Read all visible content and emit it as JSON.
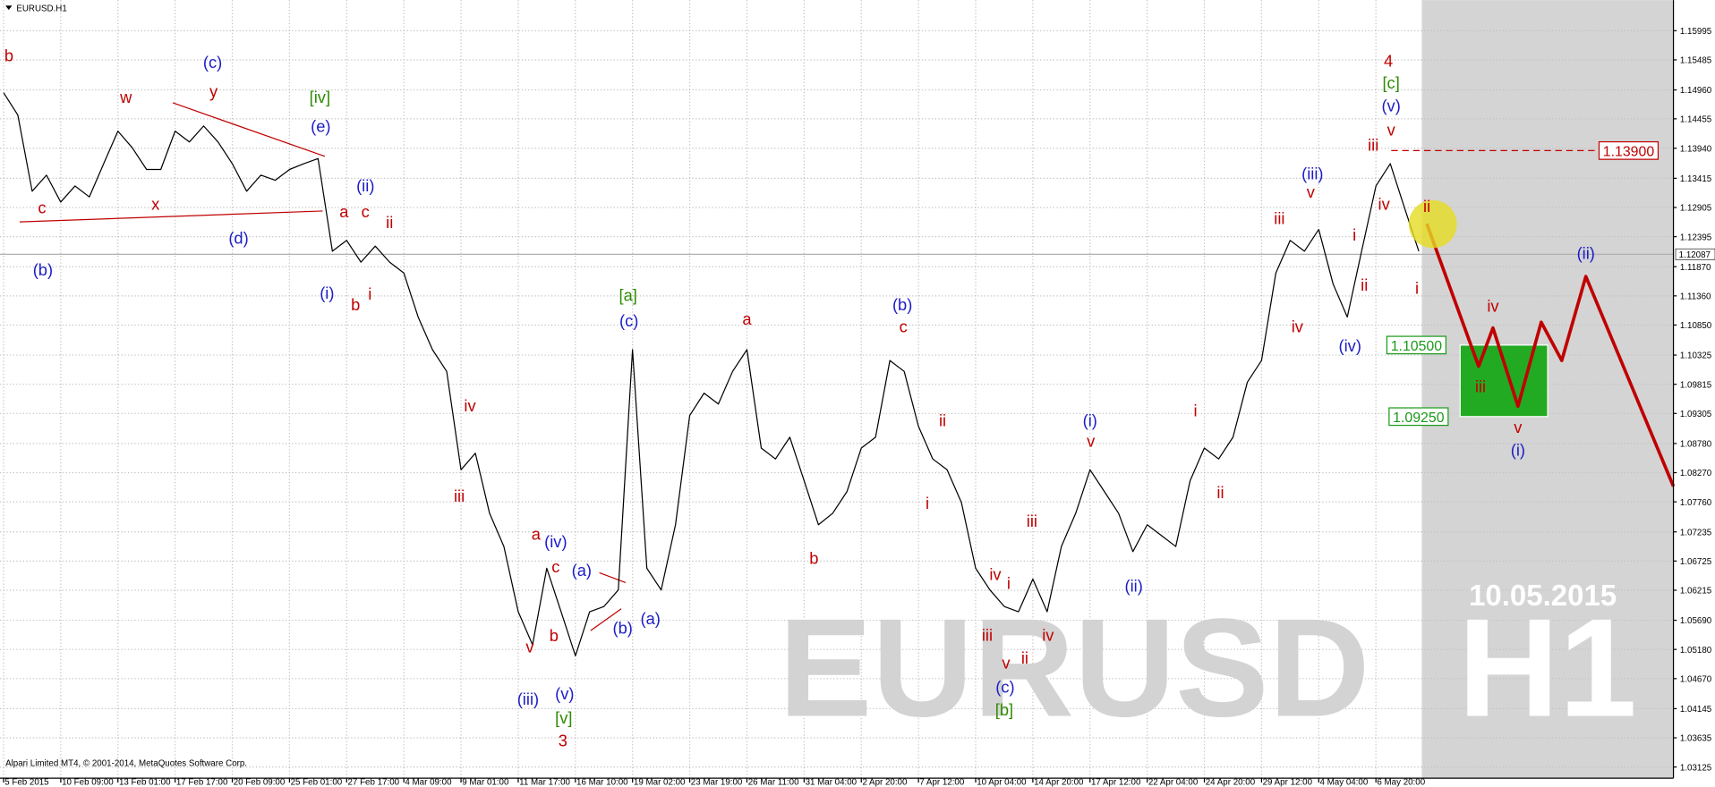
{
  "chart_data": {
    "type": "line",
    "title": "EURUSD.H1",
    "copyright": "Alpari Limited MT4, © 2001-2014, MetaQuotes Software Corp.",
    "watermark": {
      "symbol": "EURUSD",
      "timeframe": "H1",
      "date": "10.05.2015"
    },
    "xlim": [
      -4,
      1869
    ],
    "ylim": [
      1.0293,
      1.1653
    ],
    "grid": true,
    "xticks": [
      {
        "value": 0,
        "label": "5 Feb 2015"
      },
      {
        "value": 64,
        "label": "10 Feb 09:00"
      },
      {
        "value": 128,
        "label": "13 Feb 01:00"
      },
      {
        "value": 192,
        "label": "17 Feb 17:00"
      },
      {
        "value": 256,
        "label": "20 Feb 09:00"
      },
      {
        "value": 320,
        "label": "25 Feb 01:00"
      },
      {
        "value": 384,
        "label": "27 Feb 17:00"
      },
      {
        "value": 448,
        "label": "4 Mar 09:00"
      },
      {
        "value": 512,
        "label": "9 Mar 01:00"
      },
      {
        "value": 576,
        "label": "11 Mar 17:00"
      },
      {
        "value": 640,
        "label": "16 Mar 10:00"
      },
      {
        "value": 704,
        "label": "19 Mar 02:00"
      },
      {
        "value": 768,
        "label": "23 Mar 19:00"
      },
      {
        "value": 832,
        "label": "26 Mar 11:00"
      },
      {
        "value": 896,
        "label": "31 Mar 04:00"
      },
      {
        "value": 960,
        "label": "2 Apr 20:00"
      },
      {
        "value": 1024,
        "label": "7 Apr 12:00"
      },
      {
        "value": 1088,
        "label": "10 Apr 04:00"
      },
      {
        "value": 1152,
        "label": "14 Apr 20:00"
      },
      {
        "value": 1216,
        "label": "17 Apr 12:00"
      },
      {
        "value": 1280,
        "label": "22 Apr 04:00"
      },
      {
        "value": 1344,
        "label": "24 Apr 20:00"
      },
      {
        "value": 1408,
        "label": "29 Apr 12:00"
      },
      {
        "value": 1472,
        "label": "4 May 04:00"
      },
      {
        "value": 1536,
        "label": "6 May 20:00"
      }
    ],
    "yticks": [
      1.15995,
      1.15485,
      {
        "value": 1.1496,
        "label": "1.14960"
      },
      1.14455,
      {
        "value": 1.1394,
        "label": "1.13940"
      },
      1.13415,
      1.12905,
      1.12395,
      {
        "value": 1.1187,
        "label": "1.11870"
      },
      {
        "value": 1.1136,
        "label": "1.11360"
      },
      {
        "value": 1.1085,
        "label": "1.10850"
      },
      1.10325,
      1.09815,
      1.09305,
      {
        "value": 1.0878,
        "label": "1.08780"
      },
      {
        "value": 1.0827,
        "label": "1.08270"
      },
      {
        "value": 1.0776,
        "label": "1.07760"
      },
      1.07235,
      1.06725,
      1.06215,
      {
        "value": 1.0569,
        "label": "1.05690"
      },
      {
        "value": 1.0518,
        "label": "1.05180"
      },
      {
        "value": 1.0467,
        "label": "1.04670"
      },
      1.04145,
      1.03635,
      1.03125
    ],
    "current_price": 1.12087,
    "levels": [
      {
        "value": 1.139,
        "label": "1.13900",
        "color": "#c00000"
      },
      {
        "value": 1.105,
        "label": "1.10500",
        "color": "#1a9a1a"
      },
      {
        "value": 1.0925,
        "label": "1.09250",
        "color": "#1a9a1a"
      }
    ],
    "series": [
      {
        "color": "#000000",
        "x": [
          0,
          16,
          32,
          48,
          64,
          80,
          96,
          112,
          128,
          144,
          160,
          176,
          192,
          208,
          224,
          240,
          256,
          272,
          288,
          304,
          320,
          336,
          352,
          368,
          384,
          400,
          416,
          432,
          448,
          464,
          480,
          496,
          512,
          528,
          544,
          560,
          576,
          592,
          608,
          624,
          640,
          656,
          672,
          688,
          704,
          720,
          736,
          752,
          768,
          784,
          800,
          816,
          832,
          848,
          864,
          880,
          896,
          912,
          928,
          944,
          960,
          976,
          992,
          1008,
          1024,
          1040,
          1056,
          1072,
          1088,
          1104,
          1120,
          1136,
          1152,
          1168,
          1184,
          1200,
          1216,
          1232,
          1248,
          1264,
          1280,
          1296,
          1312,
          1328,
          1344,
          1360,
          1376,
          1392,
          1408,
          1424,
          1440,
          1456,
          1472,
          1488,
          1504,
          1520,
          1536,
          1552,
          1568,
          1584
        ],
        "values": [
          1.1491,
          1.1452,
          1.1319,
          1.1347,
          1.13,
          1.1328,
          1.1309,
          1.1367,
          1.1424,
          1.1395,
          1.1357,
          1.1357,
          1.1424,
          1.1405,
          1.1433,
          1.1405,
          1.1367,
          1.1319,
          1.1347,
          1.1338,
          1.1357,
          1.1367,
          1.1376,
          1.1214,
          1.1233,
          1.1195,
          1.1223,
          1.1195,
          1.1176,
          1.1099,
          1.1042,
          1.1004,
          1.0832,
          1.0861,
          1.0756,
          1.0698,
          1.0584,
          1.0526,
          1.066,
          1.0584,
          1.0507,
          1.0584,
          1.0593,
          1.0622,
          1.1042,
          1.066,
          1.0622,
          1.0736,
          1.0927,
          1.0966,
          1.0947,
          1.1004,
          1.1042,
          1.087,
          1.0851,
          1.0889,
          1.0813,
          1.0736,
          1.0756,
          1.0794,
          1.087,
          1.0889,
          1.1023,
          1.1004,
          1.0908,
          1.0851,
          1.0832,
          1.0775,
          1.066,
          1.0622,
          1.0593,
          1.0584,
          1.0641,
          1.0584,
          1.0698,
          1.0756,
          1.0832,
          1.0794,
          1.0756,
          1.0689,
          1.0736,
          1.0717,
          1.0698,
          1.0813,
          1.087,
          1.0851,
          1.0889,
          1.0985,
          1.1023,
          1.1176,
          1.1233,
          1.1214,
          1.1252,
          1.1157,
          1.1099,
          1.1214,
          1.1328,
          1.1367,
          1.129,
          1.1214
        ]
      },
      {
        "color": "#c00000",
        "x": [
          1593,
          1651,
          1667,
          1695,
          1721,
          1744,
          1771,
          1869
        ],
        "values": [
          1.1262,
          1.1013,
          1.108,
          1.0943,
          1.109,
          1.1023,
          1.117,
          1.0803
        ]
      }
    ],
    "annotations": [
      {
        "text": "b",
        "x": 6,
        "y": 1.1554,
        "color": "#c00000"
      },
      {
        "text": "w",
        "x": 137,
        "y": 1.1481,
        "color": "#c00000"
      },
      {
        "text": "y",
        "x": 235,
        "y": 1.1491,
        "color": "#c00000"
      },
      {
        "text": "x",
        "x": 170,
        "y": 1.1294,
        "color": "#c00000"
      },
      {
        "text": "c",
        "x": 43,
        "y": 1.1288,
        "color": "#c00000"
      },
      {
        "text": "a",
        "x": 381,
        "y": 1.1281,
        "color": "#c00000"
      },
      {
        "text": "c",
        "x": 405,
        "y": 1.1281,
        "color": "#c00000"
      },
      {
        "text": "ii",
        "x": 432,
        "y": 1.1262,
        "color": "#c00000"
      },
      {
        "text": "b",
        "x": 394,
        "y": 1.1118,
        "color": "#c00000"
      },
      {
        "text": "i",
        "x": 410,
        "y": 1.1137,
        "color": "#c00000"
      },
      {
        "text": "iv",
        "x": 522,
        "y": 1.0942,
        "color": "#c00000"
      },
      {
        "text": "iii",
        "x": 510,
        "y": 1.0784,
        "color": "#c00000"
      },
      {
        "text": "a",
        "x": 596,
        "y": 1.0717,
        "color": "#c00000"
      },
      {
        "text": "c",
        "x": 618,
        "y": 1.066,
        "color": "#c00000"
      },
      {
        "text": "b",
        "x": 616,
        "y": 1.054,
        "color": "#c00000"
      },
      {
        "text": "v",
        "x": 589,
        "y": 1.052,
        "color": "#c00000"
      },
      {
        "text": "3",
        "x": 626,
        "y": 1.0356,
        "color": "#c00000"
      },
      {
        "text": "a",
        "x": 832,
        "y": 1.1093,
        "color": "#c00000"
      },
      {
        "text": "c",
        "x": 1007,
        "y": 1.108,
        "color": "#c00000"
      },
      {
        "text": "b",
        "x": 907,
        "y": 1.0675,
        "color": "#c00000"
      },
      {
        "text": "ii",
        "x": 1051,
        "y": 1.0916,
        "color": "#c00000"
      },
      {
        "text": "i",
        "x": 1034,
        "y": 1.0771,
        "color": "#c00000"
      },
      {
        "text": "iv",
        "x": 1110,
        "y": 1.0647,
        "color": "#c00000"
      },
      {
        "text": "i",
        "x": 1125,
        "y": 1.0631,
        "color": "#c00000"
      },
      {
        "text": "iii",
        "x": 1101,
        "y": 1.0541,
        "color": "#c00000"
      },
      {
        "text": "v",
        "x": 1122,
        "y": 1.0492,
        "color": "#c00000"
      },
      {
        "text": "ii",
        "x": 1143,
        "y": 1.0501,
        "color": "#c00000"
      },
      {
        "text": "iii",
        "x": 1151,
        "y": 1.074,
        "color": "#c00000"
      },
      {
        "text": "iv",
        "x": 1169,
        "y": 1.0541,
        "color": "#c00000"
      },
      {
        "text": "v",
        "x": 1217,
        "y": 1.088,
        "color": "#c00000"
      },
      {
        "text": "i",
        "x": 1334,
        "y": 1.0933,
        "color": "#c00000"
      },
      {
        "text": "ii",
        "x": 1362,
        "y": 1.079,
        "color": "#c00000"
      },
      {
        "text": "iii",
        "x": 1428,
        "y": 1.1269,
        "color": "#c00000"
      },
      {
        "text": "v",
        "x": 1463,
        "y": 1.1315,
        "color": "#c00000"
      },
      {
        "text": "iv",
        "x": 1448,
        "y": 1.108,
        "color": "#c00000"
      },
      {
        "text": "i",
        "x": 1512,
        "y": 1.124,
        "color": "#c00000"
      },
      {
        "text": "ii",
        "x": 1523,
        "y": 1.1153,
        "color": "#c00000"
      },
      {
        "text": "iii",
        "x": 1533,
        "y": 1.1397,
        "color": "#c00000"
      },
      {
        "text": "v",
        "x": 1553,
        "y": 1.1424,
        "color": "#c00000"
      },
      {
        "text": "iv",
        "x": 1545,
        "y": 1.1294,
        "color": "#c00000"
      },
      {
        "text": "ii",
        "x": 1593,
        "y": 1.129,
        "color": "#c00000"
      },
      {
        "text": "i",
        "x": 1582,
        "y": 1.1147,
        "color": "#c00000"
      },
      {
        "text": "4",
        "x": 1550,
        "y": 1.1544,
        "color": "#c00000"
      },
      {
        "text": "iv",
        "x": 1667,
        "y": 1.1116,
        "color": "#c00000"
      },
      {
        "text": "iii",
        "x": 1653,
        "y": 1.0975,
        "color": "#c00000"
      },
      {
        "text": "v",
        "x": 1695,
        "y": 1.0904,
        "color": "#c00000"
      },
      {
        "text": "(c)",
        "x": 234,
        "y": 1.1542,
        "color": "#1c1cc8"
      },
      {
        "text": "(e)",
        "x": 355,
        "y": 1.143,
        "color": "#1c1cc8"
      },
      {
        "text": "(ii)",
        "x": 405,
        "y": 1.1326,
        "color": "#1c1cc8"
      },
      {
        "text": "(b)",
        "x": 44,
        "y": 1.1179,
        "color": "#1c1cc8"
      },
      {
        "text": "(d)",
        "x": 263,
        "y": 1.1235,
        "color": "#1c1cc8"
      },
      {
        "text": "(i)",
        "x": 362,
        "y": 1.1139,
        "color": "#1c1cc8"
      },
      {
        "text": "(iv)",
        "x": 618,
        "y": 1.0704,
        "color": "#1c1cc8"
      },
      {
        "text": "(a)",
        "x": 647,
        "y": 1.0654,
        "color": "#1c1cc8"
      },
      {
        "text": "(b)",
        "x": 693,
        "y": 1.0553,
        "color": "#1c1cc8"
      },
      {
        "text": "(a)",
        "x": 724,
        "y": 1.057,
        "color": "#1c1cc8"
      },
      {
        "text": "(iii)",
        "x": 587,
        "y": 1.0429,
        "color": "#1c1cc8"
      },
      {
        "text": "(v)",
        "x": 628,
        "y": 1.0438,
        "color": "#1c1cc8"
      },
      {
        "text": "(c)",
        "x": 700,
        "y": 1.109,
        "color": "#1c1cc8"
      },
      {
        "text": "(b)",
        "x": 1006,
        "y": 1.1118,
        "color": "#1c1cc8"
      },
      {
        "text": "(c)",
        "x": 1121,
        "y": 1.045,
        "color": "#1c1cc8"
      },
      {
        "text": "(i)",
        "x": 1216,
        "y": 1.0916,
        "color": "#1c1cc8"
      },
      {
        "text": "(ii)",
        "x": 1265,
        "y": 1.0627,
        "color": "#1c1cc8"
      },
      {
        "text": "(iii)",
        "x": 1465,
        "y": 1.1347,
        "color": "#1c1cc8"
      },
      {
        "text": "(iv)",
        "x": 1507,
        "y": 1.1046,
        "color": "#1c1cc8"
      },
      {
        "text": "(v)",
        "x": 1553,
        "y": 1.1466,
        "color": "#1c1cc8"
      },
      {
        "text": "(ii)",
        "x": 1771,
        "y": 1.1208,
        "color": "#1c1cc8"
      },
      {
        "text": "(i)",
        "x": 1695,
        "y": 1.0864,
        "color": "#1c1cc8"
      },
      {
        "text": "[iv]",
        "x": 354,
        "y": 1.1481,
        "color": "#2e8b00"
      },
      {
        "text": "[v]",
        "x": 627,
        "y": 1.0396,
        "color": "#2e8b00"
      },
      {
        "text": "[a]",
        "x": 699,
        "y": 1.1135,
        "color": "#2e8b00"
      },
      {
        "text": "[b]",
        "x": 1120,
        "y": 1.041,
        "color": "#2e8b00"
      },
      {
        "text": "[c]",
        "x": 1553,
        "y": 1.1506,
        "color": "#2e8b00"
      }
    ]
  }
}
